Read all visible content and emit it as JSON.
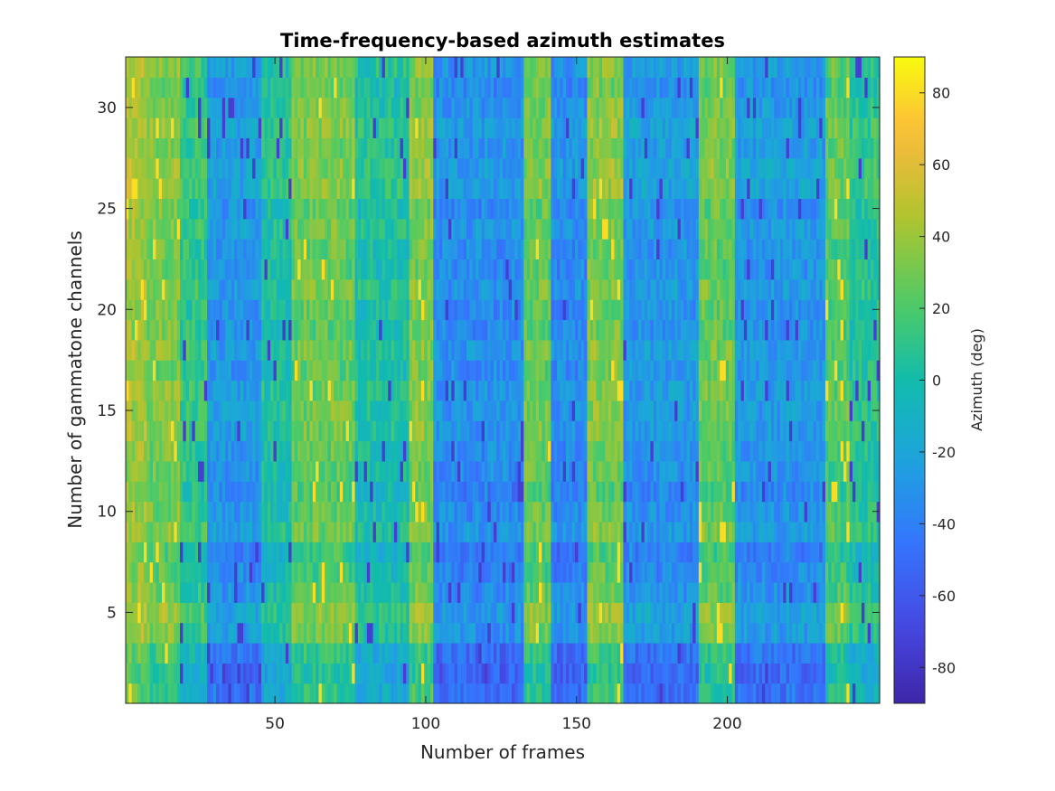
{
  "chart_data": {
    "type": "heatmap",
    "title": "Time-frequency-based azimuth estimates",
    "xlabel": "Number of frames",
    "ylabel": "Number of gammatone channels",
    "xlim": [
      0.5,
      250.5
    ],
    "ylim": [
      0.5,
      32.5
    ],
    "x_ticks": [
      50,
      100,
      150,
      200
    ],
    "y_ticks": [
      5,
      10,
      15,
      20,
      25,
      30
    ],
    "n_frames": 250,
    "n_channels": 32,
    "colorbar": {
      "label": "Azimuth (deg)",
      "clim": [
        -90,
        90
      ],
      "ticks": [
        -80,
        -60,
        -40,
        -20,
        0,
        20,
        40,
        60,
        80
      ],
      "colormap": "parula"
    },
    "frame_segments": [
      {
        "start": 1,
        "end": 7,
        "azimuth": 40
      },
      {
        "start": 8,
        "end": 18,
        "azimuth": 30
      },
      {
        "start": 19,
        "end": 27,
        "azimuth": 10
      },
      {
        "start": 28,
        "end": 45,
        "azimuth": -30
      },
      {
        "start": 46,
        "end": 55,
        "azimuth": 0
      },
      {
        "start": 56,
        "end": 76,
        "azimuth": 25
      },
      {
        "start": 77,
        "end": 94,
        "azimuth": 0
      },
      {
        "start": 95,
        "end": 102,
        "azimuth": 30
      },
      {
        "start": 103,
        "end": 132,
        "azimuth": -35
      },
      {
        "start": 133,
        "end": 141,
        "azimuth": 25
      },
      {
        "start": 142,
        "end": 153,
        "azimuth": -35
      },
      {
        "start": 154,
        "end": 165,
        "azimuth": 30
      },
      {
        "start": 166,
        "end": 190,
        "azimuth": -30
      },
      {
        "start": 191,
        "end": 202,
        "azimuth": 25
      },
      {
        "start": 203,
        "end": 232,
        "azimuth": -30
      },
      {
        "start": 233,
        "end": 240,
        "azimuth": 20
      },
      {
        "start": 241,
        "end": 250,
        "azimuth": 5
      }
    ],
    "channel_rows": [
      {
        "channel": 1,
        "offset": -15
      },
      {
        "channel": 2,
        "offset": -20
      },
      {
        "channel": 3,
        "offset": -15
      },
      {
        "channel": 4,
        "offset": 5
      },
      {
        "channel": 5,
        "offset": 10
      },
      {
        "channel": 6,
        "offset": 0
      },
      {
        "channel": 7,
        "offset": -5
      },
      {
        "channel": 8,
        "offset": -10
      },
      {
        "channel": 9,
        "offset": 5
      },
      {
        "channel": 10,
        "offset": 0
      },
      {
        "channel": 11,
        "offset": -5
      },
      {
        "channel": 12,
        "offset": 0
      },
      {
        "channel": 13,
        "offset": 0
      },
      {
        "channel": 14,
        "offset": 5
      },
      {
        "channel": 15,
        "offset": 5
      },
      {
        "channel": 16,
        "offset": 5
      },
      {
        "channel": 17,
        "offset": 0
      },
      {
        "channel": 18,
        "offset": 5
      },
      {
        "channel": 19,
        "offset": 0
      },
      {
        "channel": 20,
        "offset": 0
      },
      {
        "channel": 21,
        "offset": 5
      },
      {
        "channel": 22,
        "offset": 0
      },
      {
        "channel": 23,
        "offset": 0
      },
      {
        "channel": 24,
        "offset": 5
      },
      {
        "channel": 25,
        "offset": 0
      },
      {
        "channel": 26,
        "offset": 10
      },
      {
        "channel": 27,
        "offset": 10
      },
      {
        "channel": 28,
        "offset": 5
      },
      {
        "channel": 29,
        "offset": 10
      },
      {
        "channel": 30,
        "offset": 5
      },
      {
        "channel": 31,
        "offset": 0
      },
      {
        "channel": 32,
        "offset": 5
      }
    ]
  }
}
